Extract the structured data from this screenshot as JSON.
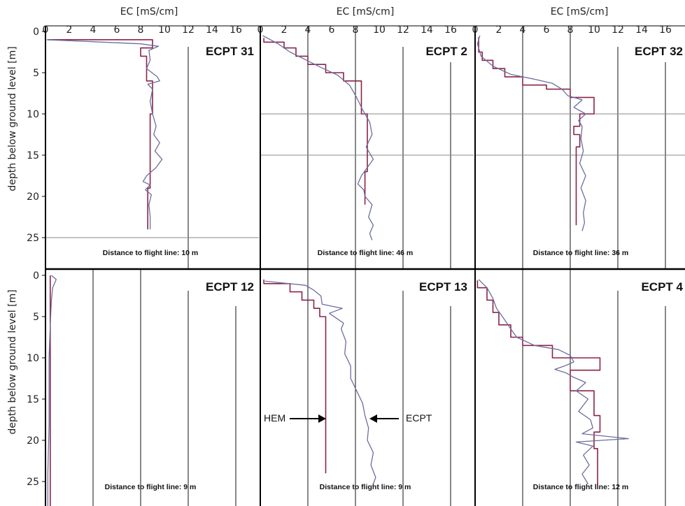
{
  "chart_data": {
    "type": "line",
    "xlabel": "EC [mS/cm]",
    "ylabel": "depth below ground level [m]",
    "x_ticks": [
      0,
      2,
      4,
      6,
      8,
      10,
      12,
      14,
      16
    ],
    "y_ticks": [
      0,
      5,
      10,
      15,
      20,
      25
    ],
    "xlim": [
      0,
      17
    ],
    "ylim": [
      0,
      28
    ],
    "grid": "vertical lines at EC 4, 8, 12, 16",
    "colors": {
      "HEM": "#8b2346",
      "ECPT": "#6b6ea0"
    },
    "annotations": {
      "hem_label": "HEM",
      "ecpt_label": "ECPT"
    },
    "panels": [
      {
        "title": "ECPT 31",
        "distance_label": "Distance to flight line: 10 m",
        "series": [
          {
            "name": "HEM",
            "points": [
              [
                0.2,
                1
              ],
              [
                9,
                1
              ],
              [
                9,
                2
              ],
              [
                8,
                2
              ],
              [
                8,
                3
              ],
              [
                8.5,
                3
              ],
              [
                8.5,
                6
              ],
              [
                9,
                6
              ],
              [
                9,
                10
              ],
              [
                8.8,
                10
              ],
              [
                8.8,
                19
              ],
              [
                8.6,
                19
              ],
              [
                8.6,
                24
              ]
            ]
          },
          {
            "name": "ECPT",
            "points": [
              [
                0.1,
                1
              ],
              [
                8,
                1.5
              ],
              [
                9.5,
                1.8
              ],
              [
                8.7,
                2.3
              ],
              [
                8.8,
                3.5
              ],
              [
                8.5,
                4.5
              ],
              [
                9.4,
                5.5
              ],
              [
                9.6,
                6
              ],
              [
                8.6,
                6.4
              ],
              [
                9,
                7
              ],
              [
                8.8,
                8.5
              ],
              [
                9,
                10
              ],
              [
                9.3,
                11.5
              ],
              [
                9.1,
                12.5
              ],
              [
                9.6,
                13.5
              ],
              [
                9.2,
                14.5
              ],
              [
                9.8,
                15.5
              ],
              [
                9.3,
                16.5
              ],
              [
                8.5,
                17.5
              ],
              [
                8.2,
                18.2
              ],
              [
                8.8,
                18.6
              ],
              [
                8.4,
                19.2
              ],
              [
                8.9,
                19.8
              ],
              [
                8.7,
                21
              ],
              [
                8.8,
                22.5
              ],
              [
                8.8,
                24
              ]
            ]
          }
        ]
      },
      {
        "title": "ECPT 2",
        "distance_label": "Distance to flight line: 46 m",
        "series": [
          {
            "name": "HEM",
            "points": [
              [
                0.3,
                0.8
              ],
              [
                0.3,
                1.3
              ],
              [
                2,
                1.3
              ],
              [
                2,
                2
              ],
              [
                3,
                2
              ],
              [
                3,
                3
              ],
              [
                4,
                3
              ],
              [
                4,
                4
              ],
              [
                5.5,
                4
              ],
              [
                5.5,
                5
              ],
              [
                7,
                5
              ],
              [
                7,
                6
              ],
              [
                8.5,
                6
              ],
              [
                8.5,
                10
              ],
              [
                9,
                10
              ],
              [
                9,
                17
              ],
              [
                8.8,
                17
              ],
              [
                8.8,
                21
              ]
            ]
          },
          {
            "name": "ECPT",
            "points": [
              [
                0.2,
                0.5
              ],
              [
                1.5,
                1.5
              ],
              [
                2.5,
                2.5
              ],
              [
                3.5,
                3.2
              ],
              [
                5,
                4.3
              ],
              [
                6.5,
                5.3
              ],
              [
                7.5,
                6.5
              ],
              [
                8.1,
                8
              ],
              [
                8.6,
                9.5
              ],
              [
                9.2,
                11
              ],
              [
                9.4,
                12.5
              ],
              [
                8.9,
                14
              ],
              [
                9.5,
                15.5
              ],
              [
                8.5,
                17.5
              ],
              [
                8.2,
                18.5
              ],
              [
                8.7,
                19.2
              ],
              [
                8.8,
                20
              ],
              [
                9.4,
                21
              ],
              [
                9.1,
                22.5
              ],
              [
                9.5,
                23.5
              ],
              [
                9.2,
                24.5
              ],
              [
                9.4,
                25.3
              ]
            ]
          }
        ]
      },
      {
        "title": "ECPT 32",
        "distance_label": "Distance to flight line: 36 m",
        "series": [
          {
            "name": "HEM",
            "points": [
              [
                0.3,
                0.7
              ],
              [
                0.3,
                2.5
              ],
              [
                0.6,
                2.5
              ],
              [
                0.6,
                3.5
              ],
              [
                1.5,
                3.5
              ],
              [
                1.5,
                4.5
              ],
              [
                2.5,
                4.5
              ],
              [
                2.5,
                5.5
              ],
              [
                4,
                5.5
              ],
              [
                4,
                6.5
              ],
              [
                6,
                6.5
              ],
              [
                6,
                7
              ],
              [
                8,
                7
              ],
              [
                8,
                8
              ],
              [
                10,
                8
              ],
              [
                10,
                10
              ],
              [
                8.8,
                10
              ],
              [
                8.8,
                11.5
              ],
              [
                8.3,
                11.5
              ],
              [
                8.3,
                12.5
              ],
              [
                8.8,
                12.5
              ],
              [
                8.8,
                14
              ],
              [
                8.5,
                14
              ],
              [
                8.5,
                23.5
              ]
            ]
          },
          {
            "name": "ECPT",
            "points": [
              [
                0.4,
                0.5
              ],
              [
                0.2,
                1.5
              ],
              [
                0.5,
                3
              ],
              [
                1.5,
                4.2
              ],
              [
                3,
                5.2
              ],
              [
                5,
                5.8
              ],
              [
                6.5,
                6.3
              ],
              [
                7.3,
                7
              ],
              [
                7.8,
                7.8
              ],
              [
                9,
                8.3
              ],
              [
                8.3,
                9.2
              ],
              [
                9.3,
                10
              ],
              [
                8.7,
                10.8
              ],
              [
                9,
                11.5
              ],
              [
                8.9,
                13
              ],
              [
                9.1,
                14.5
              ],
              [
                8.8,
                16
              ],
              [
                9.3,
                17.5
              ],
              [
                8.9,
                19
              ],
              [
                9.3,
                20.5
              ],
              [
                9.1,
                22
              ],
              [
                9.2,
                23.2
              ],
              [
                9,
                24.2
              ]
            ]
          }
        ]
      },
      {
        "title": "ECPT 12",
        "distance_label": "Distance to flight line: 9 m",
        "series": [
          {
            "name": "HEM",
            "points": [
              [
                0.4,
                0
              ],
              [
                0.4,
                29
              ]
            ]
          },
          {
            "name": "ECPT",
            "points": [
              [
                0.5,
                0
              ],
              [
                0.9,
                0.5
              ],
              [
                0.6,
                1.5
              ],
              [
                0.5,
                3
              ],
              [
                0.4,
                6
              ],
              [
                0.3,
                10
              ],
              [
                0.3,
                18
              ],
              [
                0.2,
                24
              ],
              [
                0.2,
                29
              ]
            ]
          }
        ]
      },
      {
        "title": "ECPT 13",
        "distance_label": "Distance to flight line: 9 m",
        "series": [
          {
            "name": "HEM",
            "points": [
              [
                0.3,
                0.5
              ],
              [
                0.3,
                1
              ],
              [
                2.5,
                1
              ],
              [
                2.5,
                2
              ],
              [
                3.5,
                2
              ],
              [
                3.5,
                3
              ],
              [
                4.5,
                3
              ],
              [
                4.5,
                4
              ],
              [
                5,
                4
              ],
              [
                5,
                5
              ],
              [
                5.5,
                5
              ],
              [
                5.5,
                24
              ]
            ]
          },
          {
            "name": "ECPT",
            "points": [
              [
                0.4,
                0.7
              ],
              [
                3.8,
                1.2
              ],
              [
                4.5,
                1.8
              ],
              [
                5.1,
                2.5
              ],
              [
                5.2,
                3.5
              ],
              [
                6.9,
                4
              ],
              [
                5.8,
                4.6
              ],
              [
                6.6,
                5.4
              ],
              [
                7,
                5.8
              ],
              [
                6.8,
                6.5
              ],
              [
                7.2,
                8
              ],
              [
                7.1,
                9.5
              ],
              [
                7.6,
                11
              ],
              [
                7.6,
                12.5
              ],
              [
                8.1,
                14
              ],
              [
                8.6,
                15.5
              ],
              [
                8.8,
                17
              ],
              [
                9.1,
                18.5
              ],
              [
                9,
                20
              ],
              [
                9.5,
                21.5
              ],
              [
                9.3,
                23
              ],
              [
                9.7,
                24.5
              ],
              [
                9.5,
                25.3
              ]
            ]
          }
        ]
      },
      {
        "title": "ECPT 4",
        "distance_label": "Distance to flight line: 12 m",
        "series": [
          {
            "name": "HEM",
            "points": [
              [
                0.2,
                0.6
              ],
              [
                0.2,
                1.5
              ],
              [
                1,
                1.5
              ],
              [
                1,
                3
              ],
              [
                1.5,
                3
              ],
              [
                1.5,
                4.5
              ],
              [
                2,
                4.5
              ],
              [
                2,
                6
              ],
              [
                3,
                6
              ],
              [
                3,
                7.5
              ],
              [
                4,
                7.5
              ],
              [
                4,
                8.5
              ],
              [
                6.5,
                8.5
              ],
              [
                6.5,
                10
              ],
              [
                10.5,
                10
              ],
              [
                10.5,
                11.5
              ],
              [
                8,
                11.5
              ],
              [
                8,
                14
              ],
              [
                10,
                14
              ],
              [
                10,
                17
              ],
              [
                10.5,
                17
              ],
              [
                10.5,
                19
              ],
              [
                10,
                19
              ],
              [
                10,
                21
              ],
              [
                10.3,
                21
              ],
              [
                10.3,
                25.5
              ]
            ]
          },
          {
            "name": "ECPT",
            "points": [
              [
                0.3,
                0.5
              ],
              [
                1,
                1.5
              ],
              [
                1.5,
                2.8
              ],
              [
                1.8,
                4
              ],
              [
                2.3,
                5
              ],
              [
                3,
                6.5
              ],
              [
                3.5,
                7.5
              ],
              [
                5,
                8.5
              ],
              [
                7,
                9
              ],
              [
                8,
                9.7
              ],
              [
                8.3,
                10.5
              ],
              [
                7.5,
                11
              ],
              [
                6.7,
                11.4
              ],
              [
                7.6,
                11.8
              ],
              [
                8.2,
                12.3
              ],
              [
                9.3,
                13
              ],
              [
                8.5,
                14
              ],
              [
                9.5,
                15
              ],
              [
                8.7,
                16.5
              ],
              [
                9.7,
                17.5
              ],
              [
                9.9,
                18.5
              ],
              [
                9,
                19.2
              ],
              [
                12.9,
                19.8
              ],
              [
                8.5,
                20.2
              ],
              [
                9.9,
                20.7
              ],
              [
                9.1,
                21.8
              ],
              [
                9.6,
                23
              ],
              [
                9,
                24.1
              ],
              [
                9.5,
                25.3
              ]
            ]
          }
        ]
      }
    ]
  }
}
